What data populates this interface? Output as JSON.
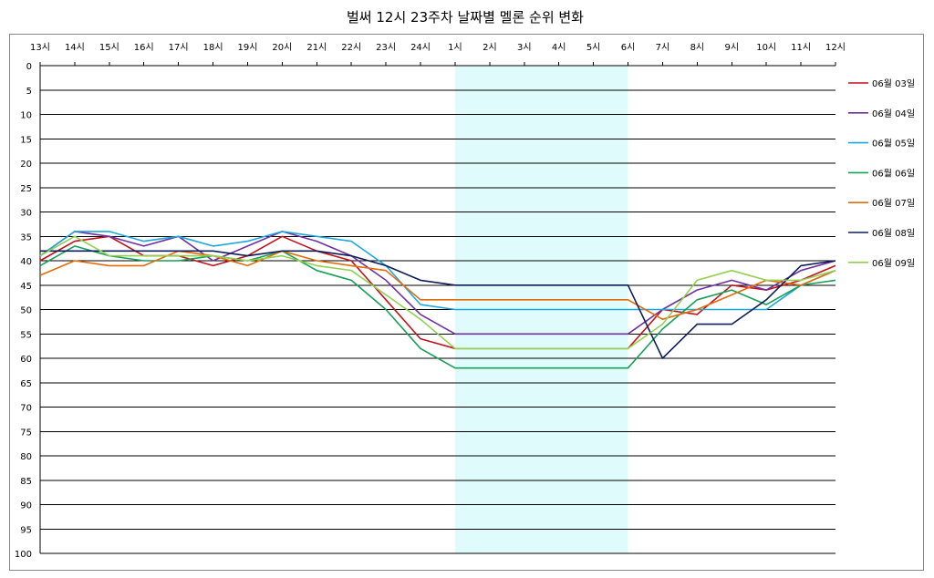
{
  "chart_data": {
    "type": "line",
    "title": "벌써 12시 23주차 날짜별 멜론 순위 변화",
    "x": [
      "13시",
      "14시",
      "15시",
      "16시",
      "17시",
      "18시",
      "19시",
      "20시",
      "21시",
      "22시",
      "23시",
      "24시",
      "1시",
      "2시",
      "3시",
      "4시",
      "5시",
      "6시",
      "7시",
      "8시",
      "9시",
      "10시",
      "11시",
      "12시"
    ],
    "ylim": [
      0,
      100
    ],
    "y_inverted": true,
    "y_ticks": [
      0,
      5,
      10,
      15,
      20,
      25,
      30,
      35,
      40,
      45,
      50,
      55,
      60,
      65,
      70,
      75,
      80,
      85,
      90,
      95,
      100
    ],
    "grid": true,
    "legend_position": "right",
    "highlight": {
      "from": "1시",
      "to": "6시",
      "color": "#e0fbfb"
    },
    "series": [
      {
        "name": "06월 03일",
        "color": "#c0121d",
        "values": [
          40,
          36,
          35,
          39,
          39,
          41,
          39,
          35,
          38,
          40,
          48,
          56,
          58,
          58,
          58,
          58,
          58,
          58,
          50,
          51,
          45,
          46,
          44,
          41
        ]
      },
      {
        "name": "06월 04일",
        "color": "#7030a0",
        "values": [
          39,
          34,
          35,
          37,
          35,
          40,
          37,
          34,
          36,
          39,
          44,
          51,
          55,
          55,
          55,
          55,
          55,
          55,
          50,
          46,
          44,
          46,
          42,
          40
        ]
      },
      {
        "name": "06월 05일",
        "color": "#1ba8db",
        "values": [
          39,
          34,
          34,
          36,
          35,
          37,
          36,
          34,
          35,
          36,
          41,
          49,
          50,
          50,
          50,
          50,
          50,
          50,
          50,
          50,
          50,
          50,
          45,
          42
        ]
      },
      {
        "name": "06월 06일",
        "color": "#16a058",
        "values": [
          41,
          37,
          39,
          40,
          40,
          39,
          40,
          38,
          42,
          44,
          50,
          58,
          62,
          62,
          62,
          62,
          62,
          62,
          54,
          48,
          46,
          49,
          45,
          44
        ]
      },
      {
        "name": "06월 07일",
        "color": "#e36c0a",
        "values": [
          43,
          40,
          41,
          41,
          38,
          39,
          41,
          38,
          40,
          41,
          42,
          48,
          48,
          48,
          48,
          48,
          48,
          48,
          52,
          50,
          47,
          44,
          45,
          42
        ]
      },
      {
        "name": "06월 08일",
        "color": "#0e1e5b",
        "values": [
          38,
          38,
          38,
          38,
          38,
          38,
          39,
          38,
          38,
          39,
          41,
          44,
          45,
          45,
          45,
          45,
          45,
          45,
          60,
          53,
          53,
          48,
          41,
          40
        ]
      },
      {
        "name": "06월 09일",
        "color": "#92d050",
        "values": [
          39,
          35,
          39,
          39,
          39,
          39,
          40,
          39,
          41,
          42,
          47,
          52,
          58,
          58,
          58,
          58,
          58,
          58,
          53,
          44,
          42,
          44,
          44,
          42
        ]
      }
    ]
  }
}
